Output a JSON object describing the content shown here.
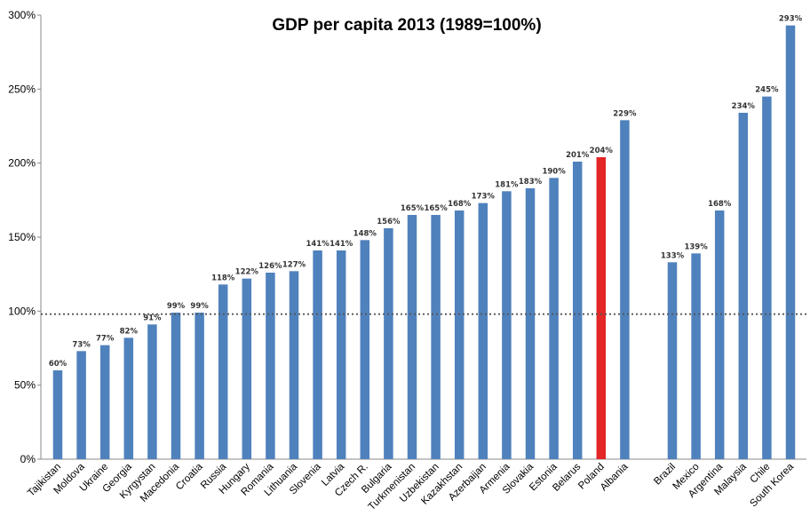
{
  "chart_data": {
    "type": "bar",
    "title": "GDP per capita 2013 (1989=100%)",
    "xlabel": "",
    "ylabel": "",
    "ylim": [
      0,
      300
    ],
    "yticks": [
      0,
      50,
      100,
      150,
      200,
      250,
      300
    ],
    "ytick_labels": [
      "0%",
      "50%",
      "100%",
      "150%",
      "200%",
      "250%",
      "300%"
    ],
    "reference_line": 98,
    "colors": {
      "bar": "#4f81bd",
      "highlight": "#e32626",
      "reference": "#555555"
    },
    "highlight": "Poland",
    "groups": [
      {
        "categories": [
          "Tajikistan",
          "Moldova",
          "Ukraine",
          "Georgia",
          "Kyrgystan",
          "Macedonia",
          "Croatia",
          "Russia",
          "Hungary",
          "Romania",
          "Lithuania",
          "Slovenia",
          "Latvia",
          "Czech R.",
          "Bulgaria",
          "Turkmenistan",
          "Uzbekistan",
          "Kazakhstan",
          "Azerbaijan",
          "Armenia",
          "Slovakia",
          "Estonia",
          "Belarus",
          "Poland",
          "Albania"
        ],
        "values": [
          60,
          73,
          77,
          82,
          91,
          99,
          99,
          118,
          122,
          126,
          127,
          141,
          141,
          148,
          156,
          165,
          165,
          168,
          173,
          181,
          183,
          190,
          201,
          204,
          229
        ],
        "labels": [
          "60%",
          "73%",
          "77%",
          "82%",
          "91%",
          "99%",
          "99%",
          "118%",
          "122%",
          "126%",
          "127%",
          "141%",
          "141%",
          "148%",
          "156%",
          "165%",
          "165%",
          "168%",
          "173%",
          "181%",
          "183%",
          "190%",
          "201%",
          "204%",
          "229%"
        ]
      },
      {
        "categories": [
          "Brazil",
          "Mexico",
          "Argentina",
          "Malaysia",
          "Chile",
          "South Korea"
        ],
        "values": [
          133,
          139,
          168,
          234,
          245,
          293
        ],
        "labels": [
          "133%",
          "139%",
          "168%",
          "234%",
          "245%",
          "293%"
        ]
      }
    ]
  }
}
